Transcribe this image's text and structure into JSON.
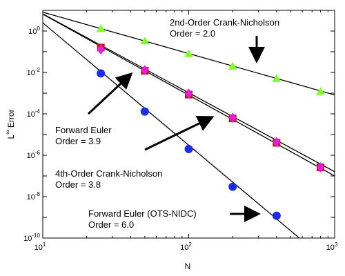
{
  "chart_data": {
    "type": "scatter",
    "title": "",
    "xlabel": "N",
    "ylabel": {
      "base": "L",
      "sup": "∞",
      "rest": " Error"
    },
    "x_scale": "log",
    "y_scale": "log",
    "xlim": [
      10,
      1000
    ],
    "ylim": [
      1e-10,
      10
    ],
    "x_ticks": [
      {
        "value": 10,
        "base": "10",
        "exp": "1"
      },
      {
        "value": 100,
        "base": "10",
        "exp": "2"
      },
      {
        "value": 1000,
        "base": "10",
        "exp": "3"
      }
    ],
    "y_ticks": [
      {
        "value": 1,
        "base": "10",
        "exp": "0"
      },
      {
        "value": 0.01,
        "base": "10",
        "exp": "-2"
      },
      {
        "value": 0.0001,
        "base": "10",
        "exp": "-4"
      },
      {
        "value": 1e-06,
        "base": "10",
        "exp": "-6"
      },
      {
        "value": 1e-08,
        "base": "10",
        "exp": "-8"
      },
      {
        "value": 1e-10,
        "base": "10",
        "exp": "-10"
      }
    ],
    "grid": false,
    "series": [
      {
        "name": "2nd-Order Crank-Nicholson",
        "marker": "triangle",
        "color": "#7fff2a",
        "x": [
          25,
          50,
          100,
          200,
          400,
          800
        ],
        "y": [
          1.3,
          0.33,
          0.08,
          0.02,
          0.005,
          0.0012
        ],
        "fit_line": {
          "x": [
            10,
            1000
          ],
          "y": [
            8.2,
            0.00082
          ]
        }
      },
      {
        "name": "Forward Euler",
        "marker": "square",
        "color": "#cc1111",
        "x": [
          25,
          50,
          100,
          200,
          400,
          800
        ],
        "y": [
          0.16,
          0.012,
          0.00085,
          6e-05,
          4e-06,
          2.6e-07
        ],
        "fit_line": {
          "x": [
            10,
            1000
          ],
          "y": [
            6.5,
            1e-07
          ]
        }
      },
      {
        "name": "4th-Order Crank-Nicholson",
        "marker": "diamond",
        "color": "#e020e0",
        "x": [
          25,
          50,
          100,
          200,
          400,
          800
        ],
        "y": [
          0.13,
          0.013,
          0.00095,
          6.5e-05,
          4.3e-06,
          2.6e-07
        ],
        "fit_line": {
          "x": [
            10,
            1000
          ],
          "y": [
            6.8,
            1.6e-07
          ]
        }
      },
      {
        "name": "Forward Euler (OTS-NIDC)",
        "marker": "circle",
        "color": "#1a2ee8",
        "x": [
          25,
          50,
          100,
          200,
          400
        ],
        "y": [
          0.009,
          0.00013,
          2e-06,
          3e-08,
          1.2e-09
        ],
        "fit_line": {
          "x": [
            10,
            573
          ],
          "y": [
            2.5,
            1e-10
          ]
        }
      }
    ],
    "annotations": [
      {
        "id": "cn2",
        "lines": [
          "2nd-Order Crank-Nicholson",
          "Order = 2.0"
        ]
      },
      {
        "id": "fe",
        "lines": [
          "Forward Euler",
          "Order = 3.9"
        ]
      },
      {
        "id": "cn4",
        "lines": [
          "4th-Order Crank-Nicholson",
          "Order = 3.8"
        ]
      },
      {
        "id": "ots",
        "lines": [
          "Forward Euler (OTS-NIDC)",
          "Order = 6.0"
        ]
      }
    ]
  }
}
